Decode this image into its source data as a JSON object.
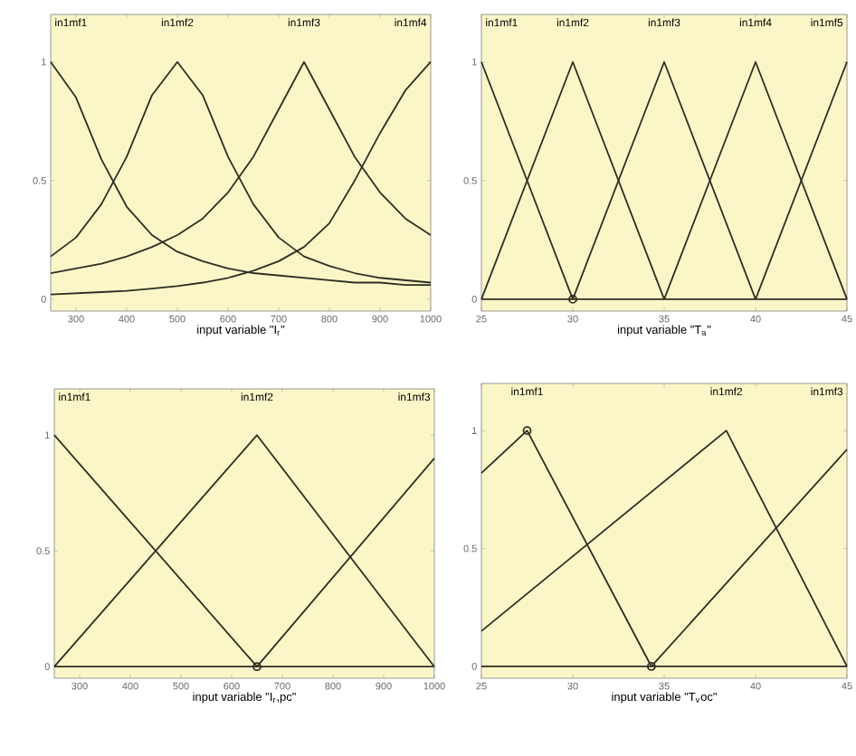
{
  "chart_data": [
    {
      "type": "line",
      "xlabel": "input variable \"I$_{r}$\"",
      "xlim": [
        250,
        1000
      ],
      "ylim": [
        -0.05,
        1.2
      ],
      "xticks": [
        300,
        400,
        500,
        600,
        700,
        800,
        900,
        1000
      ],
      "yticks": [
        0,
        0.5,
        1
      ],
      "x": [
        250,
        300,
        350,
        400,
        450,
        500,
        550,
        600,
        650,
        700,
        750,
        800,
        850,
        900,
        950,
        1000
      ],
      "series": [
        {
          "color": "#2e2e22",
          "values": [
            1,
            0.85,
            0.59,
            0.39,
            0.27,
            0.2,
            0.16,
            0.13,
            0.11,
            0.1,
            0.09,
            0.08,
            0.07,
            0.07,
            0.06,
            0.06
          ]
        },
        {
          "color": "#2e2e22",
          "values": [
            0.18,
            0.26,
            0.4,
            0.6,
            0.86,
            1,
            0.86,
            0.6,
            0.4,
            0.26,
            0.18,
            0.14,
            0.11,
            0.09,
            0.08,
            0.07
          ]
        },
        {
          "color": "#2e2e22",
          "values": [
            0.11,
            0.13,
            0.15,
            0.18,
            0.22,
            0.27,
            0.34,
            0.45,
            0.6,
            0.8,
            1,
            0.8,
            0.6,
            0.45,
            0.34,
            0.27
          ]
        },
        {
          "color": "#2e2e22",
          "values": [
            0.02,
            0.025,
            0.03,
            0.035,
            0.045,
            0.055,
            0.07,
            0.09,
            0.12,
            0.16,
            0.22,
            0.32,
            0.5,
            0.7,
            0.88,
            1
          ]
        }
      ],
      "annotations": [
        "in1mf1",
        "in1mf2",
        "in1mf3",
        "in1mf4"
      ]
    },
    {
      "type": "line",
      "xlabel": "input variable \"T$_{a}$\"",
      "xlim": [
        25,
        45
      ],
      "ylim": [
        -0.05,
        1.2
      ],
      "xticks": [
        25,
        30,
        35,
        40,
        45
      ],
      "yticks": [
        0,
        0.5,
        1
      ],
      "series": [
        {
          "color": "#2e2e22",
          "x": [
            25,
            30
          ],
          "values": [
            1,
            0
          ]
        },
        {
          "color": "#2e2e22",
          "x": [
            25,
            30,
            35
          ],
          "values": [
            0,
            1,
            0
          ]
        },
        {
          "color": "#2e2e22",
          "x": [
            30,
            35,
            40
          ],
          "values": [
            0,
            1,
            0
          ]
        },
        {
          "color": "#2e2e22",
          "x": [
            35,
            40,
            45
          ],
          "values": [
            0,
            1,
            0
          ]
        },
        {
          "color": "#2e2e22",
          "x": [
            40,
            45
          ],
          "values": [
            0,
            1
          ]
        },
        {
          "type": "scatter",
          "marker": "circle",
          "color": "#2e2e22",
          "x": [
            30
          ],
          "values": [
            0
          ]
        }
      ],
      "ref_lines": [
        {
          "axis": "y",
          "value": 0,
          "color": "#2e2e22"
        }
      ],
      "annotations": [
        "in1mf1",
        "in1mf2",
        "in1mf3",
        "in1mf4",
        "in1mf5"
      ]
    },
    {
      "type": "line",
      "xlabel": "input variable \"I$_{r}$,pc\"",
      "xlim": [
        250,
        1000
      ],
      "ylim": [
        -0.05,
        1.2
      ],
      "xticks": [
        300,
        400,
        500,
        600,
        700,
        800,
        900,
        1000
      ],
      "yticks": [
        0,
        0.5,
        1
      ],
      "series": [
        {
          "color": "#2e2e22",
          "x": [
            250,
            650
          ],
          "values": [
            1,
            0
          ]
        },
        {
          "color": "#2e2e22",
          "x": [
            250,
            650,
            1000
          ],
          "values": [
            0,
            1,
            0
          ]
        },
        {
          "color": "#2e2e22",
          "x": [
            650,
            1000
          ],
          "values": [
            0,
            0.9
          ]
        },
        {
          "type": "scatter",
          "marker": "circle",
          "color": "#2e2e22",
          "x": [
            650
          ],
          "values": [
            0
          ]
        }
      ],
      "ref_lines": [
        {
          "axis": "y",
          "value": 0,
          "color": "#2e2e22"
        }
      ],
      "annotations": [
        "in1mf1",
        "in1mf2",
        "in1mf3"
      ]
    },
    {
      "type": "line",
      "xlabel": "input variable \"T$_{v}$oc\"",
      "xlim": [
        25,
        45
      ],
      "ylim": [
        -0.05,
        1.2
      ],
      "xticks": [
        25,
        30,
        35,
        40,
        45
      ],
      "yticks": [
        0,
        0.5,
        1
      ],
      "series": [
        {
          "color": "#2e2e22",
          "x": [
            25,
            27.5,
            34.3
          ],
          "values": [
            0.82,
            1,
            0
          ]
        },
        {
          "color": "#2e2e22",
          "x": [
            25,
            38.4,
            45
          ],
          "values": [
            0.15,
            1,
            0
          ]
        },
        {
          "color": "#2e2e22",
          "x": [
            34.3,
            45
          ],
          "values": [
            0,
            0.92
          ]
        },
        {
          "type": "scatter",
          "marker": "circle",
          "color": "#2e2e22",
          "x": [
            27.5,
            34.3
          ],
          "values": [
            1,
            0
          ]
        }
      ],
      "ref_lines": [
        {
          "axis": "y",
          "value": 0,
          "color": "#2e2e22"
        }
      ],
      "annotations": [
        "in1mf1",
        "in1mf2",
        "in1mf3"
      ]
    }
  ]
}
